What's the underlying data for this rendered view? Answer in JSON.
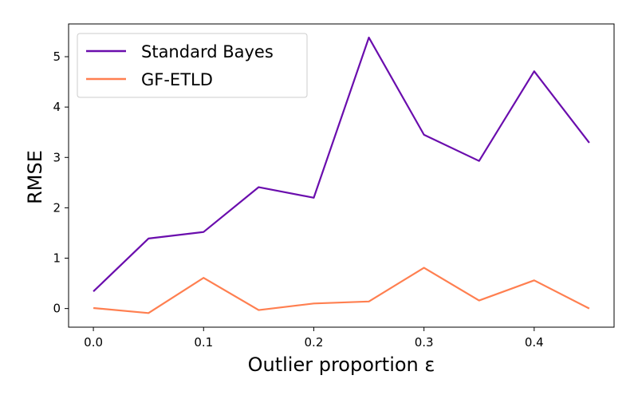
{
  "chart_data": {
    "type": "line",
    "xlabel": "Outlier proportion ε",
    "ylabel": "RMSE",
    "x": [
      0.0,
      0.05,
      0.1,
      0.15,
      0.2,
      0.25,
      0.3,
      0.35,
      0.4,
      0.45
    ],
    "xlim": [
      -0.0225,
      0.4725
    ],
    "ylim": [
      -0.37,
      5.65
    ],
    "xticks": [
      0.0,
      0.1,
      0.2,
      0.3,
      0.4
    ],
    "xtick_labels": [
      "0.0",
      "0.1",
      "0.2",
      "0.3",
      "0.4"
    ],
    "yticks": [
      0,
      1,
      2,
      3,
      4,
      5
    ],
    "ytick_labels": [
      "0",
      "1",
      "2",
      "3",
      "4",
      "5"
    ],
    "grid": false,
    "legend_position": "top-left",
    "series": [
      {
        "name": "Standard Bayes",
        "color": "#6a0dad",
        "values": [
          0.34,
          1.39,
          1.52,
          2.41,
          2.2,
          5.38,
          3.45,
          2.93,
          4.71,
          3.29
        ]
      },
      {
        "name": "GF-ETLD",
        "color": "#ff7f50",
        "values": [
          0.01,
          -0.09,
          0.61,
          -0.03,
          0.1,
          0.14,
          0.81,
          0.16,
          0.56,
          0.0
        ]
      }
    ]
  }
}
